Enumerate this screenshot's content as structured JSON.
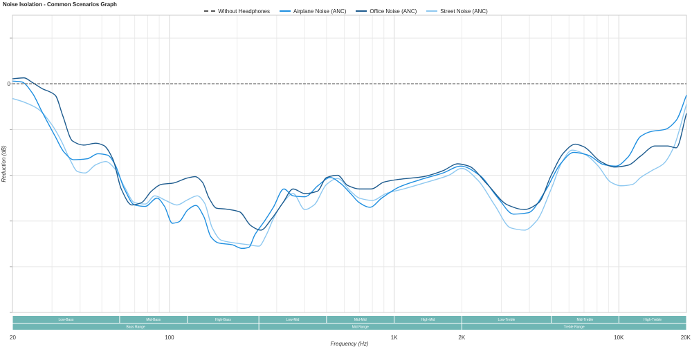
{
  "chart_data": {
    "type": "line",
    "title": "Noise Isolation - Common Scenarios Graph",
    "xlabel": "Frequency (Hz)",
    "ylabel": "Reduction (dB)",
    "x_scale": "log",
    "xlim": [
      20,
      20000
    ],
    "ylim": [
      -50,
      15
    ],
    "x_ticks": [
      {
        "value": 20,
        "label": "20"
      },
      {
        "value": 100,
        "label": "100"
      },
      {
        "value": 1000,
        "label": "1K"
      },
      {
        "value": 2000,
        "label": "2K"
      },
      {
        "value": 10000,
        "label": "10K"
      },
      {
        "value": 20000,
        "label": "20K"
      }
    ],
    "y_ticks": [
      {
        "value": 0,
        "label": "0"
      }
    ],
    "legend_position": "top-center",
    "series": [
      {
        "name": "Without Headphones",
        "color": "#555555",
        "dashed": true,
        "points": [
          [
            20,
            0
          ],
          [
            20000,
            0
          ]
        ]
      },
      {
        "name": "Airplane Noise (ANC)",
        "color": "#1f8fe0",
        "dashed": false,
        "points": [
          [
            20,
            0.6
          ],
          [
            22,
            0.4
          ],
          [
            24.5,
            -2
          ],
          [
            27,
            -6
          ],
          [
            31,
            -11.5
          ],
          [
            34,
            -15
          ],
          [
            37.5,
            -16.6
          ],
          [
            43,
            -16.4
          ],
          [
            48,
            -15.3
          ],
          [
            53,
            -15.6
          ],
          [
            57,
            -17.5
          ],
          [
            63,
            -23
          ],
          [
            70,
            -26.5
          ],
          [
            78,
            -26.8
          ],
          [
            88,
            -25
          ],
          [
            95,
            -26.8
          ],
          [
            103,
            -30.5
          ],
          [
            110,
            -30.2
          ],
          [
            121,
            -27.5
          ],
          [
            131,
            -26.6
          ],
          [
            142,
            -29
          ],
          [
            153,
            -33.5
          ],
          [
            165,
            -34.8
          ],
          [
            190,
            -35.2
          ],
          [
            210,
            -36
          ],
          [
            225,
            -35.8
          ],
          [
            240,
            -33
          ],
          [
            265,
            -30
          ],
          [
            290,
            -27
          ],
          [
            323,
            -23
          ],
          [
            355,
            -24.5
          ],
          [
            400,
            -24.7
          ],
          [
            460,
            -22.2
          ],
          [
            520,
            -20.5
          ],
          [
            575,
            -21.7
          ],
          [
            640,
            -24
          ],
          [
            700,
            -26
          ],
          [
            780,
            -27
          ],
          [
            880,
            -25
          ],
          [
            1050,
            -22.6
          ],
          [
            1300,
            -21
          ],
          [
            1650,
            -19.5
          ],
          [
            1980,
            -18
          ],
          [
            2400,
            -20
          ],
          [
            2900,
            -25
          ],
          [
            3400,
            -28.5
          ],
          [
            3950,
            -28.2
          ],
          [
            4700,
            -23.5
          ],
          [
            5500,
            -17.5
          ],
          [
            6300,
            -15
          ],
          [
            7300,
            -15.6
          ],
          [
            8600,
            -17.7
          ],
          [
            9700,
            -18
          ],
          [
            11000,
            -16
          ],
          [
            12500,
            -11.5
          ],
          [
            14000,
            -10.4
          ],
          [
            16000,
            -10
          ],
          [
            18000,
            -8
          ],
          [
            20000,
            -2.5
          ]
        ]
      },
      {
        "name": "Office Noise (ANC)",
        "color": "#1d5b8e",
        "dashed": false,
        "points": [
          [
            20,
            1.1
          ],
          [
            22.5,
            1.3
          ],
          [
            24.5,
            0.3
          ],
          [
            27,
            -1
          ],
          [
            31,
            -2.5
          ],
          [
            33.5,
            -7
          ],
          [
            37,
            -12.5
          ],
          [
            41.5,
            -13.4
          ],
          [
            47,
            -13
          ],
          [
            51,
            -13.5
          ],
          [
            56,
            -16.5
          ],
          [
            61,
            -23
          ],
          [
            68,
            -26.5
          ],
          [
            75,
            -26
          ],
          [
            83,
            -23.5
          ],
          [
            92,
            -22
          ],
          [
            104,
            -21.7
          ],
          [
            120,
            -20.6
          ],
          [
            130,
            -20.3
          ],
          [
            140,
            -21.5
          ],
          [
            150,
            -25
          ],
          [
            162,
            -27.2
          ],
          [
            178,
            -27.4
          ],
          [
            205,
            -28
          ],
          [
            230,
            -31
          ],
          [
            255,
            -32
          ],
          [
            285,
            -29.5
          ],
          [
            320,
            -26
          ],
          [
            355,
            -23
          ],
          [
            400,
            -24
          ],
          [
            455,
            -23.5
          ],
          [
            500,
            -20.5
          ],
          [
            560,
            -20
          ],
          [
            620,
            -22.2
          ],
          [
            700,
            -23
          ],
          [
            790,
            -23
          ],
          [
            900,
            -21.5
          ],
          [
            1050,
            -20.9
          ],
          [
            1350,
            -20.3
          ],
          [
            1650,
            -19
          ],
          [
            1920,
            -17.5
          ],
          [
            2150,
            -18
          ],
          [
            2600,
            -22
          ],
          [
            3200,
            -26.5
          ],
          [
            3800,
            -27.5
          ],
          [
            4400,
            -26
          ],
          [
            5000,
            -20
          ],
          [
            5700,
            -15
          ],
          [
            6400,
            -13.2
          ],
          [
            7000,
            -13.8
          ],
          [
            8300,
            -17
          ],
          [
            9600,
            -18.2
          ],
          [
            11000,
            -17.8
          ],
          [
            12500,
            -15.8
          ],
          [
            14500,
            -13.6
          ],
          [
            16500,
            -13.6
          ],
          [
            18000,
            -14
          ],
          [
            20000,
            -6.5
          ]
        ]
      },
      {
        "name": "Street Noise (ANC)",
        "color": "#8ec8f0",
        "dashed": false,
        "points": [
          [
            20,
            -3.2
          ],
          [
            22.5,
            -4
          ],
          [
            26,
            -5.5
          ],
          [
            30,
            -9
          ],
          [
            33,
            -12.5
          ],
          [
            36,
            -16.5
          ],
          [
            39,
            -19.2
          ],
          [
            42,
            -19.5
          ],
          [
            47,
            -17.7
          ],
          [
            52,
            -17
          ],
          [
            57,
            -18.5
          ],
          [
            63,
            -22.5
          ],
          [
            70,
            -26
          ],
          [
            78,
            -26.3
          ],
          [
            86,
            -24.5
          ],
          [
            96,
            -25.5
          ],
          [
            108,
            -26.5
          ],
          [
            120,
            -25.4
          ],
          [
            133,
            -24.5
          ],
          [
            143,
            -26
          ],
          [
            155,
            -31.5
          ],
          [
            170,
            -34.2
          ],
          [
            195,
            -34.8
          ],
          [
            225,
            -35.2
          ],
          [
            250,
            -35.5
          ],
          [
            270,
            -33
          ],
          [
            290,
            -29.5
          ],
          [
            320,
            -26
          ],
          [
            355,
            -24
          ],
          [
            400,
            -27.5
          ],
          [
            440,
            -26.5
          ],
          [
            500,
            -22
          ],
          [
            560,
            -20.7
          ],
          [
            640,
            -23.5
          ],
          [
            700,
            -25
          ],
          [
            800,
            -25.5
          ],
          [
            920,
            -24
          ],
          [
            1100,
            -23
          ],
          [
            1400,
            -21.5
          ],
          [
            1750,
            -20
          ],
          [
            2000,
            -18.5
          ],
          [
            2350,
            -21
          ],
          [
            2800,
            -26.5
          ],
          [
            3300,
            -31.5
          ],
          [
            3800,
            -32
          ],
          [
            4300,
            -30
          ],
          [
            5000,
            -23
          ],
          [
            5600,
            -17
          ],
          [
            6200,
            -14.5
          ],
          [
            7100,
            -15.5
          ],
          [
            8100,
            -18
          ],
          [
            9200,
            -21.5
          ],
          [
            10200,
            -22.3
          ],
          [
            11500,
            -22
          ],
          [
            12500,
            -20.5
          ],
          [
            14000,
            -19
          ],
          [
            15800,
            -17.5
          ],
          [
            17500,
            -14
          ],
          [
            20000,
            -4.5
          ]
        ]
      }
    ],
    "frequency_bands": {
      "top_row": [
        {
          "label": "Low-Bass",
          "from": 20,
          "to": 60
        },
        {
          "label": "Mid-Bass",
          "from": 60,
          "to": 120
        },
        {
          "label": "High-Bass",
          "from": 120,
          "to": 250
        },
        {
          "label": "Low-Mid",
          "from": 250,
          "to": 500
        },
        {
          "label": "Mid-Mid",
          "from": 500,
          "to": 1000
        },
        {
          "label": "High-Mid",
          "from": 1000,
          "to": 2000
        },
        {
          "label": "Low-Treble",
          "from": 2000,
          "to": 5000
        },
        {
          "label": "Mid-Treble",
          "from": 5000,
          "to": 10000
        },
        {
          "label": "High-Treble",
          "from": 10000,
          "to": 20000
        }
      ],
      "bottom_row": [
        {
          "label": "Bass Range",
          "from": 20,
          "to": 250
        },
        {
          "label": "Mid Range",
          "from": 250,
          "to": 2000
        },
        {
          "label": "Treble Range",
          "from": 2000,
          "to": 20000
        }
      ],
      "color": "#6fb6b4"
    }
  }
}
